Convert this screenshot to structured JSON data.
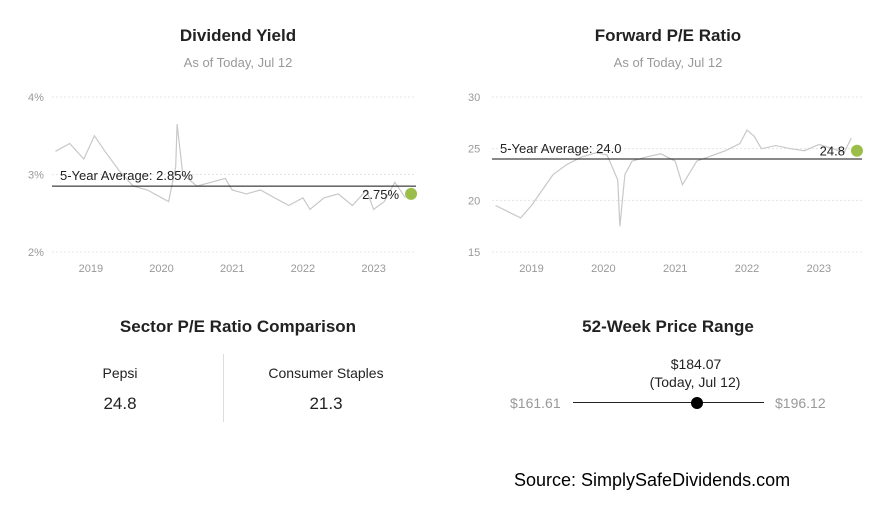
{
  "chart_data": [
    {
      "type": "line",
      "title": "Dividend Yield",
      "subtitle": "As of Today, Jul 12",
      "y_ticks": [
        "4%",
        "3%",
        "2%"
      ],
      "y_tick_values": [
        4,
        3,
        2
      ],
      "ylim": [
        2,
        4
      ],
      "x_ticks": [
        "2019",
        "2020",
        "2021",
        "2022",
        "2023"
      ],
      "x_tick_values": [
        2019,
        2020,
        2021,
        2022,
        2023
      ],
      "xlim": [
        2018.45,
        2023.6
      ],
      "average": {
        "label": "5-Year Average: 2.85%",
        "value": 2.85
      },
      "current": {
        "label": "2.75%",
        "value": 2.75,
        "x": 2023.53
      },
      "series": [
        {
          "x": [
            2018.5,
            2018.7,
            2018.9,
            2019.05,
            2019.2,
            2019.4,
            2019.6,
            2019.8,
            2020.0,
            2020.1,
            2020.2,
            2020.22,
            2020.3,
            2020.5,
            2020.7,
            2020.9,
            2021.0,
            2021.2,
            2021.4,
            2021.6,
            2021.8,
            2022.0,
            2022.1,
            2022.3,
            2022.5,
            2022.7,
            2022.9,
            2023.0,
            2023.15,
            2023.3,
            2023.45
          ],
          "y": [
            3.3,
            3.4,
            3.2,
            3.5,
            3.3,
            3.05,
            2.85,
            2.8,
            2.7,
            2.65,
            3.1,
            3.65,
            3.0,
            2.85,
            2.9,
            2.95,
            2.8,
            2.75,
            2.8,
            2.7,
            2.6,
            2.7,
            2.55,
            2.7,
            2.75,
            2.6,
            2.8,
            2.55,
            2.65,
            2.9,
            2.7
          ]
        }
      ]
    },
    {
      "type": "line",
      "title": "Forward P/E Ratio",
      "subtitle": "As of Today, Jul 12",
      "y_ticks": [
        "30",
        "25",
        "20",
        "15"
      ],
      "y_tick_values": [
        30,
        25,
        20,
        15
      ],
      "ylim": [
        15,
        30
      ],
      "x_ticks": [
        "2019",
        "2020",
        "2021",
        "2022",
        "2023"
      ],
      "x_tick_values": [
        2019,
        2020,
        2021,
        2022,
        2023
      ],
      "xlim": [
        2018.45,
        2023.6
      ],
      "average": {
        "label": "5-Year Average: 24.0",
        "value": 24.0
      },
      "current": {
        "label": "24.8",
        "value": 24.8,
        "x": 2023.53
      },
      "series": [
        {
          "x": [
            2018.5,
            2018.7,
            2018.85,
            2019.0,
            2019.15,
            2019.3,
            2019.5,
            2019.7,
            2019.9,
            2020.05,
            2020.2,
            2020.23,
            2020.3,
            2020.4,
            2020.6,
            2020.8,
            2021.0,
            2021.1,
            2021.3,
            2021.5,
            2021.7,
            2021.9,
            2022.0,
            2022.1,
            2022.2,
            2022.4,
            2022.6,
            2022.8,
            2023.0,
            2023.2,
            2023.35,
            2023.45
          ],
          "y": [
            19.5,
            18.8,
            18.3,
            19.5,
            21.0,
            22.5,
            23.5,
            24.2,
            24.6,
            24.4,
            22.0,
            17.5,
            22.5,
            23.8,
            24.2,
            24.5,
            23.8,
            21.5,
            23.8,
            24.3,
            24.8,
            25.5,
            26.8,
            26.2,
            25.0,
            25.3,
            25.0,
            24.8,
            25.4,
            25.0,
            24.6,
            26.0
          ]
        }
      ]
    }
  ],
  "comparison": {
    "title": "Sector P/E Ratio Comparison",
    "left_label": "Pepsi",
    "left_value": "24.8",
    "right_label": "Consumer Staples",
    "right_value": "21.3"
  },
  "price_range": {
    "title": "52-Week Price Range",
    "current": "$184.07",
    "current_note": "(Today, Jul 12)",
    "low": "$161.61",
    "high": "$196.12",
    "low_value": 161.61,
    "high_value": 196.12,
    "current_value": 184.07
  },
  "source": "Source: SimplySafeDividends.com",
  "colors": {
    "line": "#c8c8c8",
    "grid": "#e4e4e4",
    "average_line": "#111111",
    "current_dot": "#9bbd4a",
    "axis_text": "#999999"
  }
}
